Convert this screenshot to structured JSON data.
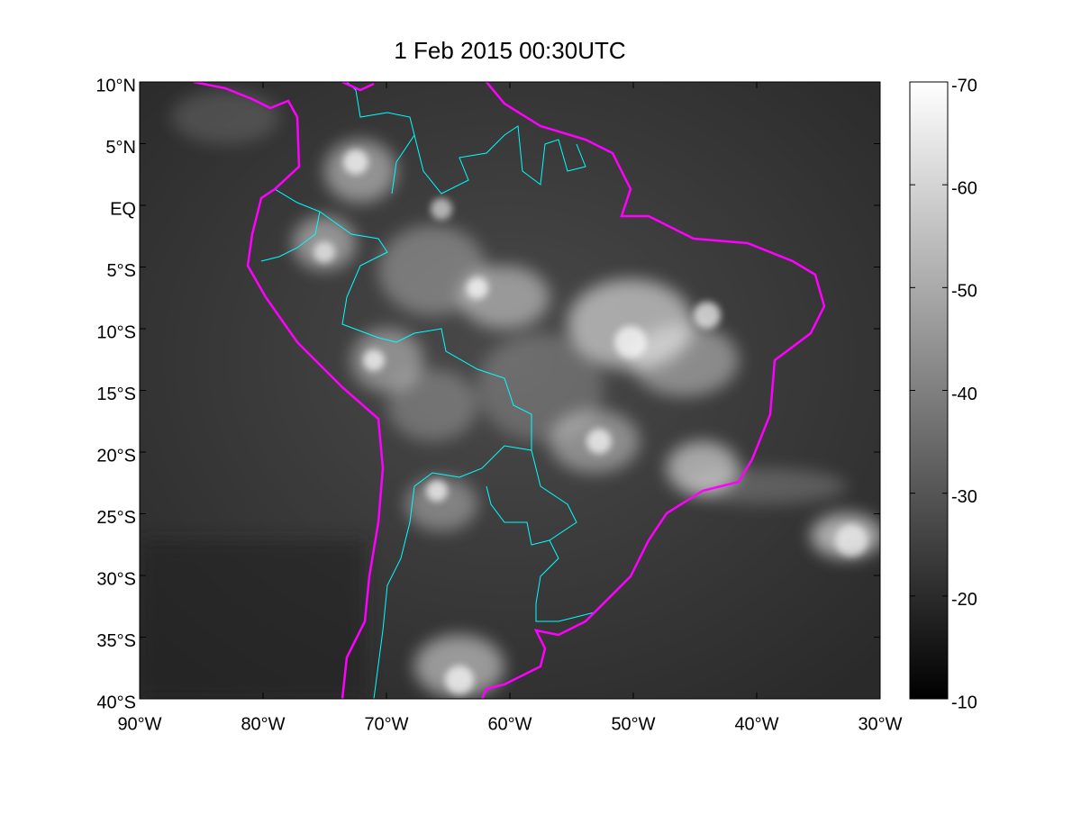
{
  "chart_data": {
    "type": "map",
    "title": "1 Feb 2015  00:30UTC",
    "xlim": [
      -90,
      -30
    ],
    "ylim": [
      -40,
      10
    ],
    "xticks": [
      {
        "value": -90,
        "label": "90°W"
      },
      {
        "value": -80,
        "label": "80°W"
      },
      {
        "value": -70,
        "label": "70°W"
      },
      {
        "value": -60,
        "label": "60°W"
      },
      {
        "value": -50,
        "label": "50°W"
      },
      {
        "value": -40,
        "label": "40°W"
      },
      {
        "value": -30,
        "label": "30°W"
      }
    ],
    "yticks": [
      {
        "value": 10,
        "label": "10°N"
      },
      {
        "value": 5,
        "label": "5°N"
      },
      {
        "value": 0,
        "label": "EQ"
      },
      {
        "value": -5,
        "label": "5°S"
      },
      {
        "value": -10,
        "label": "10°S"
      },
      {
        "value": -15,
        "label": "15°S"
      },
      {
        "value": -20,
        "label": "20°S"
      },
      {
        "value": -25,
        "label": "25°S"
      },
      {
        "value": -30,
        "label": "30°S"
      },
      {
        "value": -35,
        "label": "35°S"
      },
      {
        "value": -40,
        "label": "40°S"
      }
    ],
    "colorbar": {
      "lim": [
        -10,
        -70
      ],
      "ticks": [
        -70,
        -60,
        -50,
        -40,
        -30,
        -20,
        -10
      ]
    }
  }
}
